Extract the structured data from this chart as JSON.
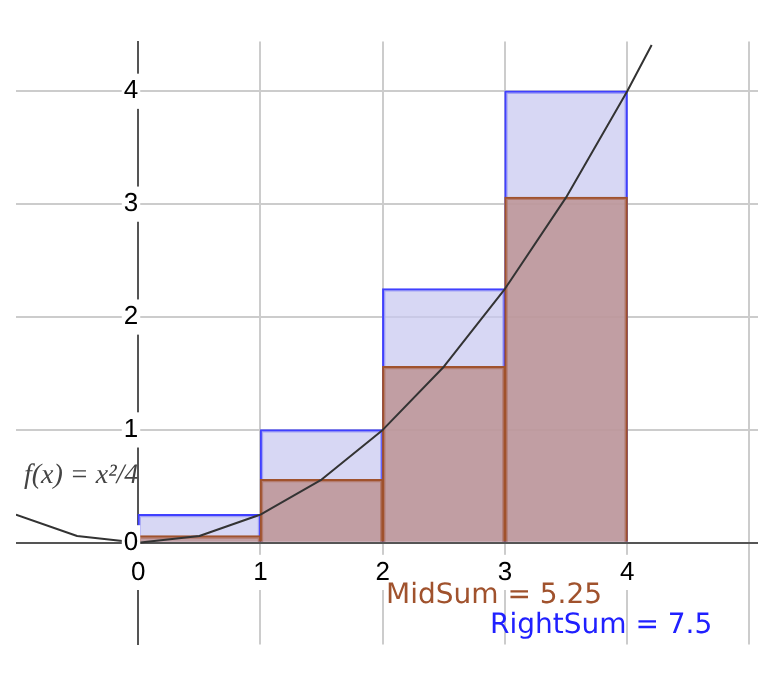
{
  "chart_data": {
    "type": "bar",
    "annotations": [
      "f(x) = x²/4",
      "MidSum = 5.25",
      "RightSum = 7.5"
    ],
    "xlim": [
      -1,
      5.07
    ],
    "xticks": [
      0,
      1,
      2,
      3,
      4,
      {
        "value": 5,
        "label": null
      }
    ],
    "ylim": [
      -0.9,
      4.44
    ],
    "yticks": [
      0,
      1,
      2,
      3,
      4
    ],
    "grid": true,
    "legend": false,
    "series": [
      {
        "color": "#c8c8f0",
        "x": [
          0.5,
          1.5,
          2.5,
          3.5
        ],
        "values": [
          0.25,
          1,
          2.25,
          4
        ]
      },
      {
        "color": "#b98a86",
        "x": [
          0.5,
          1.5,
          2.5,
          3.5
        ],
        "values": [
          0.06,
          0.56,
          1.56,
          3.06
        ]
      },
      {
        "type": "line",
        "color": "#333333",
        "x": [
          -1,
          -0.5,
          0,
          0.5,
          1,
          1.5,
          2,
          2.5,
          3,
          3.5,
          4,
          4.2
        ],
        "values": [
          0.25,
          0.06,
          0,
          0.06,
          0.25,
          0.56,
          1,
          1.56,
          2.25,
          3.06,
          4,
          4.41
        ]
      }
    ]
  }
}
